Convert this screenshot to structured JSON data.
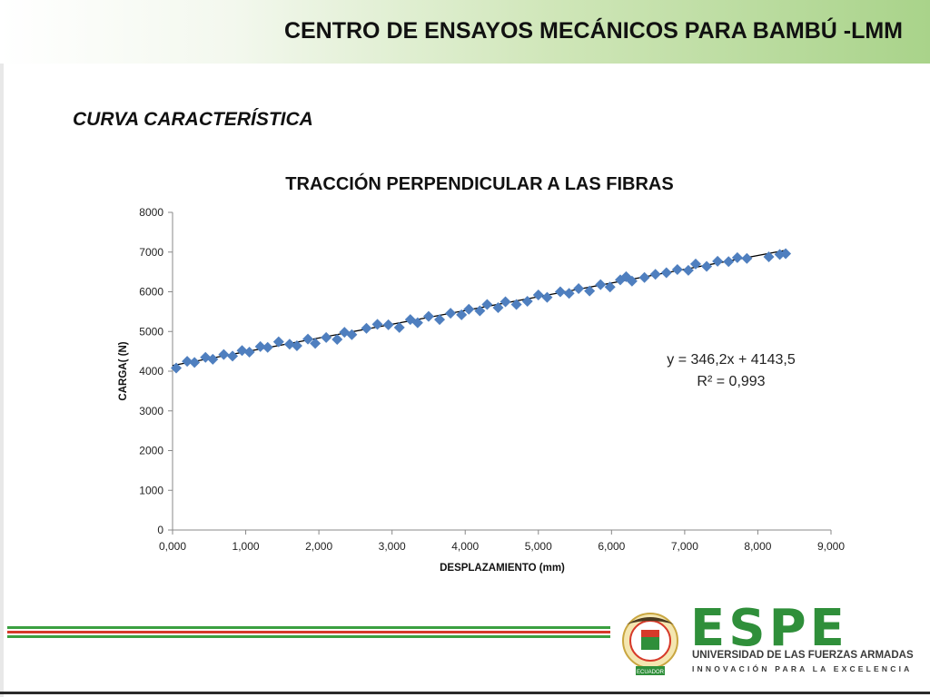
{
  "header": {
    "title": "CENTRO DE ENSAYOS MECÁNICOS PARA BAMBÚ -LMM"
  },
  "subtitle": "CURVA CARACTERÍSTICA",
  "chart_data": {
    "type": "scatter",
    "title": "TRACCIÓN PERPENDICULAR A LAS FIBRAS",
    "xlabel": "DESPLAZAMIENTO (mm)",
    "ylabel": "CARGA( (N)",
    "xlim": [
      0,
      9
    ],
    "ylim": [
      0,
      8000
    ],
    "x_ticks": [
      "0,000",
      "1,000",
      "2,000",
      "3,000",
      "4,000",
      "5,000",
      "6,000",
      "7,000",
      "8,000",
      "9,000"
    ],
    "y_ticks": [
      "0",
      "1000",
      "2000",
      "3000",
      "4000",
      "5000",
      "6000",
      "7000",
      "8000"
    ],
    "series": [
      {
        "marker": "diamond",
        "color": "#4f7fbf",
        "points": [
          [
            0.05,
            4080
          ],
          [
            0.2,
            4250
          ],
          [
            0.3,
            4220
          ],
          [
            0.45,
            4350
          ],
          [
            0.55,
            4300
          ],
          [
            0.7,
            4420
          ],
          [
            0.82,
            4380
          ],
          [
            0.95,
            4520
          ],
          [
            1.05,
            4480
          ],
          [
            1.2,
            4620
          ],
          [
            1.3,
            4600
          ],
          [
            1.45,
            4740
          ],
          [
            1.6,
            4680
          ],
          [
            1.7,
            4640
          ],
          [
            1.85,
            4810
          ],
          [
            1.95,
            4700
          ],
          [
            2.1,
            4850
          ],
          [
            2.25,
            4800
          ],
          [
            2.35,
            4980
          ],
          [
            2.45,
            4920
          ],
          [
            2.65,
            5080
          ],
          [
            2.8,
            5180
          ],
          [
            2.95,
            5170
          ],
          [
            3.1,
            5100
          ],
          [
            3.25,
            5300
          ],
          [
            3.35,
            5220
          ],
          [
            3.5,
            5380
          ],
          [
            3.65,
            5300
          ],
          [
            3.8,
            5460
          ],
          [
            3.95,
            5420
          ],
          [
            4.05,
            5560
          ],
          [
            4.2,
            5520
          ],
          [
            4.3,
            5680
          ],
          [
            4.45,
            5600
          ],
          [
            4.55,
            5750
          ],
          [
            4.7,
            5680
          ],
          [
            4.85,
            5760
          ],
          [
            5.0,
            5920
          ],
          [
            5.12,
            5860
          ],
          [
            5.3,
            6000
          ],
          [
            5.42,
            5960
          ],
          [
            5.55,
            6080
          ],
          [
            5.7,
            6020
          ],
          [
            5.85,
            6180
          ],
          [
            5.98,
            6120
          ],
          [
            6.12,
            6300
          ],
          [
            6.2,
            6380
          ],
          [
            6.28,
            6270
          ],
          [
            6.45,
            6360
          ],
          [
            6.6,
            6440
          ],
          [
            6.75,
            6480
          ],
          [
            6.9,
            6560
          ],
          [
            7.05,
            6540
          ],
          [
            7.15,
            6700
          ],
          [
            7.3,
            6640
          ],
          [
            7.45,
            6770
          ],
          [
            7.6,
            6760
          ],
          [
            7.72,
            6860
          ],
          [
            7.85,
            6840
          ],
          [
            8.15,
            6880
          ],
          [
            8.3,
            6940
          ],
          [
            8.38,
            6960
          ]
        ]
      }
    ],
    "trendline": {
      "slope": 346.2,
      "intercept": 4143.5,
      "x_range": [
        0.0,
        8.38
      ],
      "color": "#000000"
    },
    "trend_equation": "y = 346,2x + 4143,5",
    "r_squared": "R² = 0,993",
    "grid": false
  },
  "logo": {
    "brand": "ESPE",
    "line1": "UNIVERSIDAD DE LAS FUERZAS ARMADAS",
    "line2": "INNOVACIÓN PARA LA EXCELENCIA",
    "seal_text": "ECUADOR",
    "colors": {
      "green": "#2f8f3a",
      "red": "#d63a2a"
    }
  }
}
